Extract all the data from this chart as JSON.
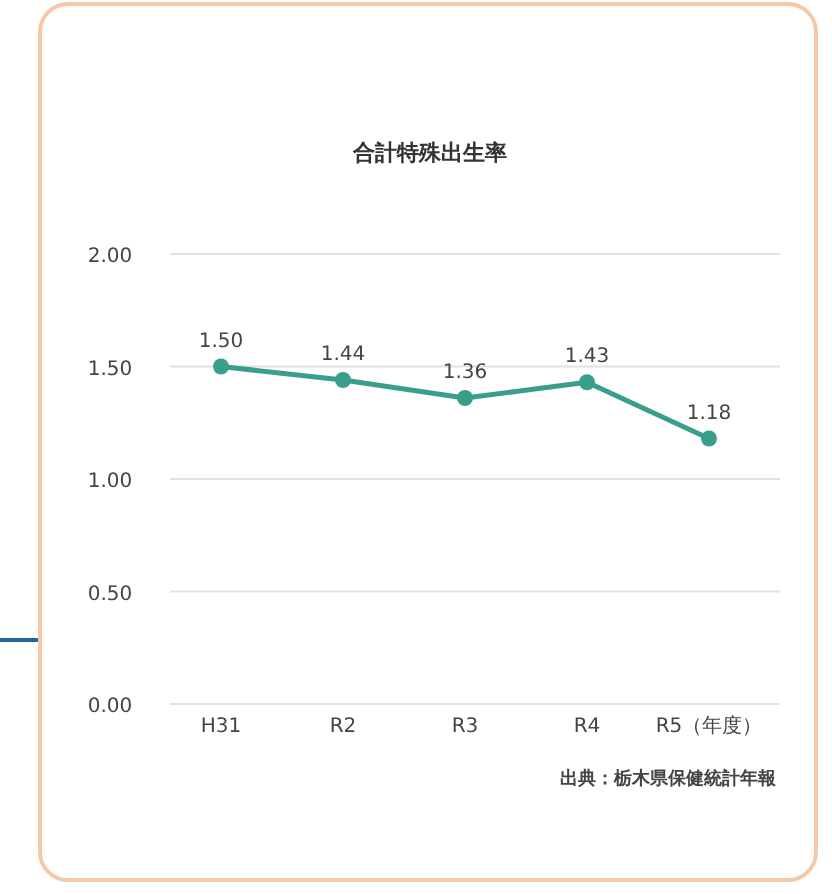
{
  "chart_data": {
    "type": "line",
    "title": "合計特殊出生率",
    "categories": [
      "H31",
      "R2",
      "R3",
      "R4",
      "R5（年度）"
    ],
    "series": [
      {
        "color": "#3a9e8c",
        "values": [
          1.5,
          1.44,
          1.36,
          1.43,
          1.18
        ],
        "value_labels": [
          "1.50",
          "1.44",
          "1.36",
          "1.43",
          "1.18"
        ]
      }
    ],
    "ylim": [
      0,
      2
    ],
    "yticks": [
      {
        "value": 0,
        "label": "0.00"
      },
      {
        "value": 0.5,
        "label": "0.50"
      },
      {
        "value": 1,
        "label": "1.00"
      },
      {
        "value": 1.5,
        "label": "1.50"
      },
      {
        "value": 2,
        "label": "2.00"
      }
    ],
    "grid": "y",
    "marker": "circle",
    "line_style": "solid",
    "annotations": [
      "出典：栃木県保健統計年報"
    ]
  }
}
